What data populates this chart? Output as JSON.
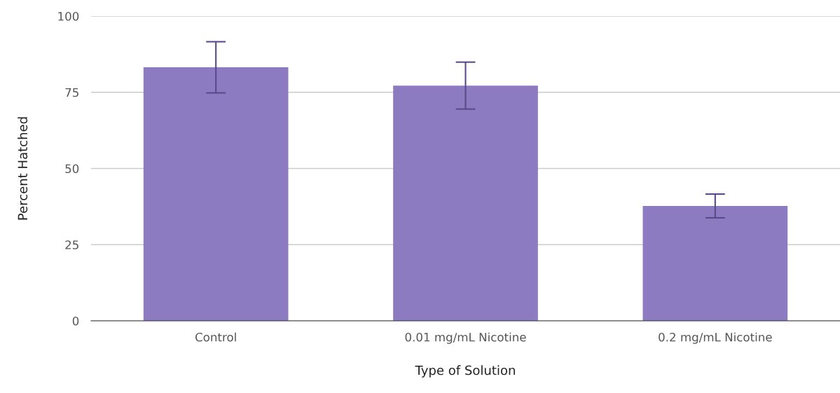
{
  "chart_data": {
    "type": "bar",
    "xlabel": "Type of Solution",
    "ylabel": "Percent Hatched",
    "categories": [
      "Control",
      "0.01 mg/mL Nicotine",
      "0.2 mg/mL Nicotine"
    ],
    "values": [
      83.2,
      77.2,
      37.7
    ],
    "color": "#8c7bc0",
    "errors": [
      8.4,
      7.7,
      3.9
    ],
    "ylim": [
      0,
      100
    ],
    "yticks": [
      0,
      25,
      50,
      75,
      100
    ],
    "grid": "y"
  }
}
